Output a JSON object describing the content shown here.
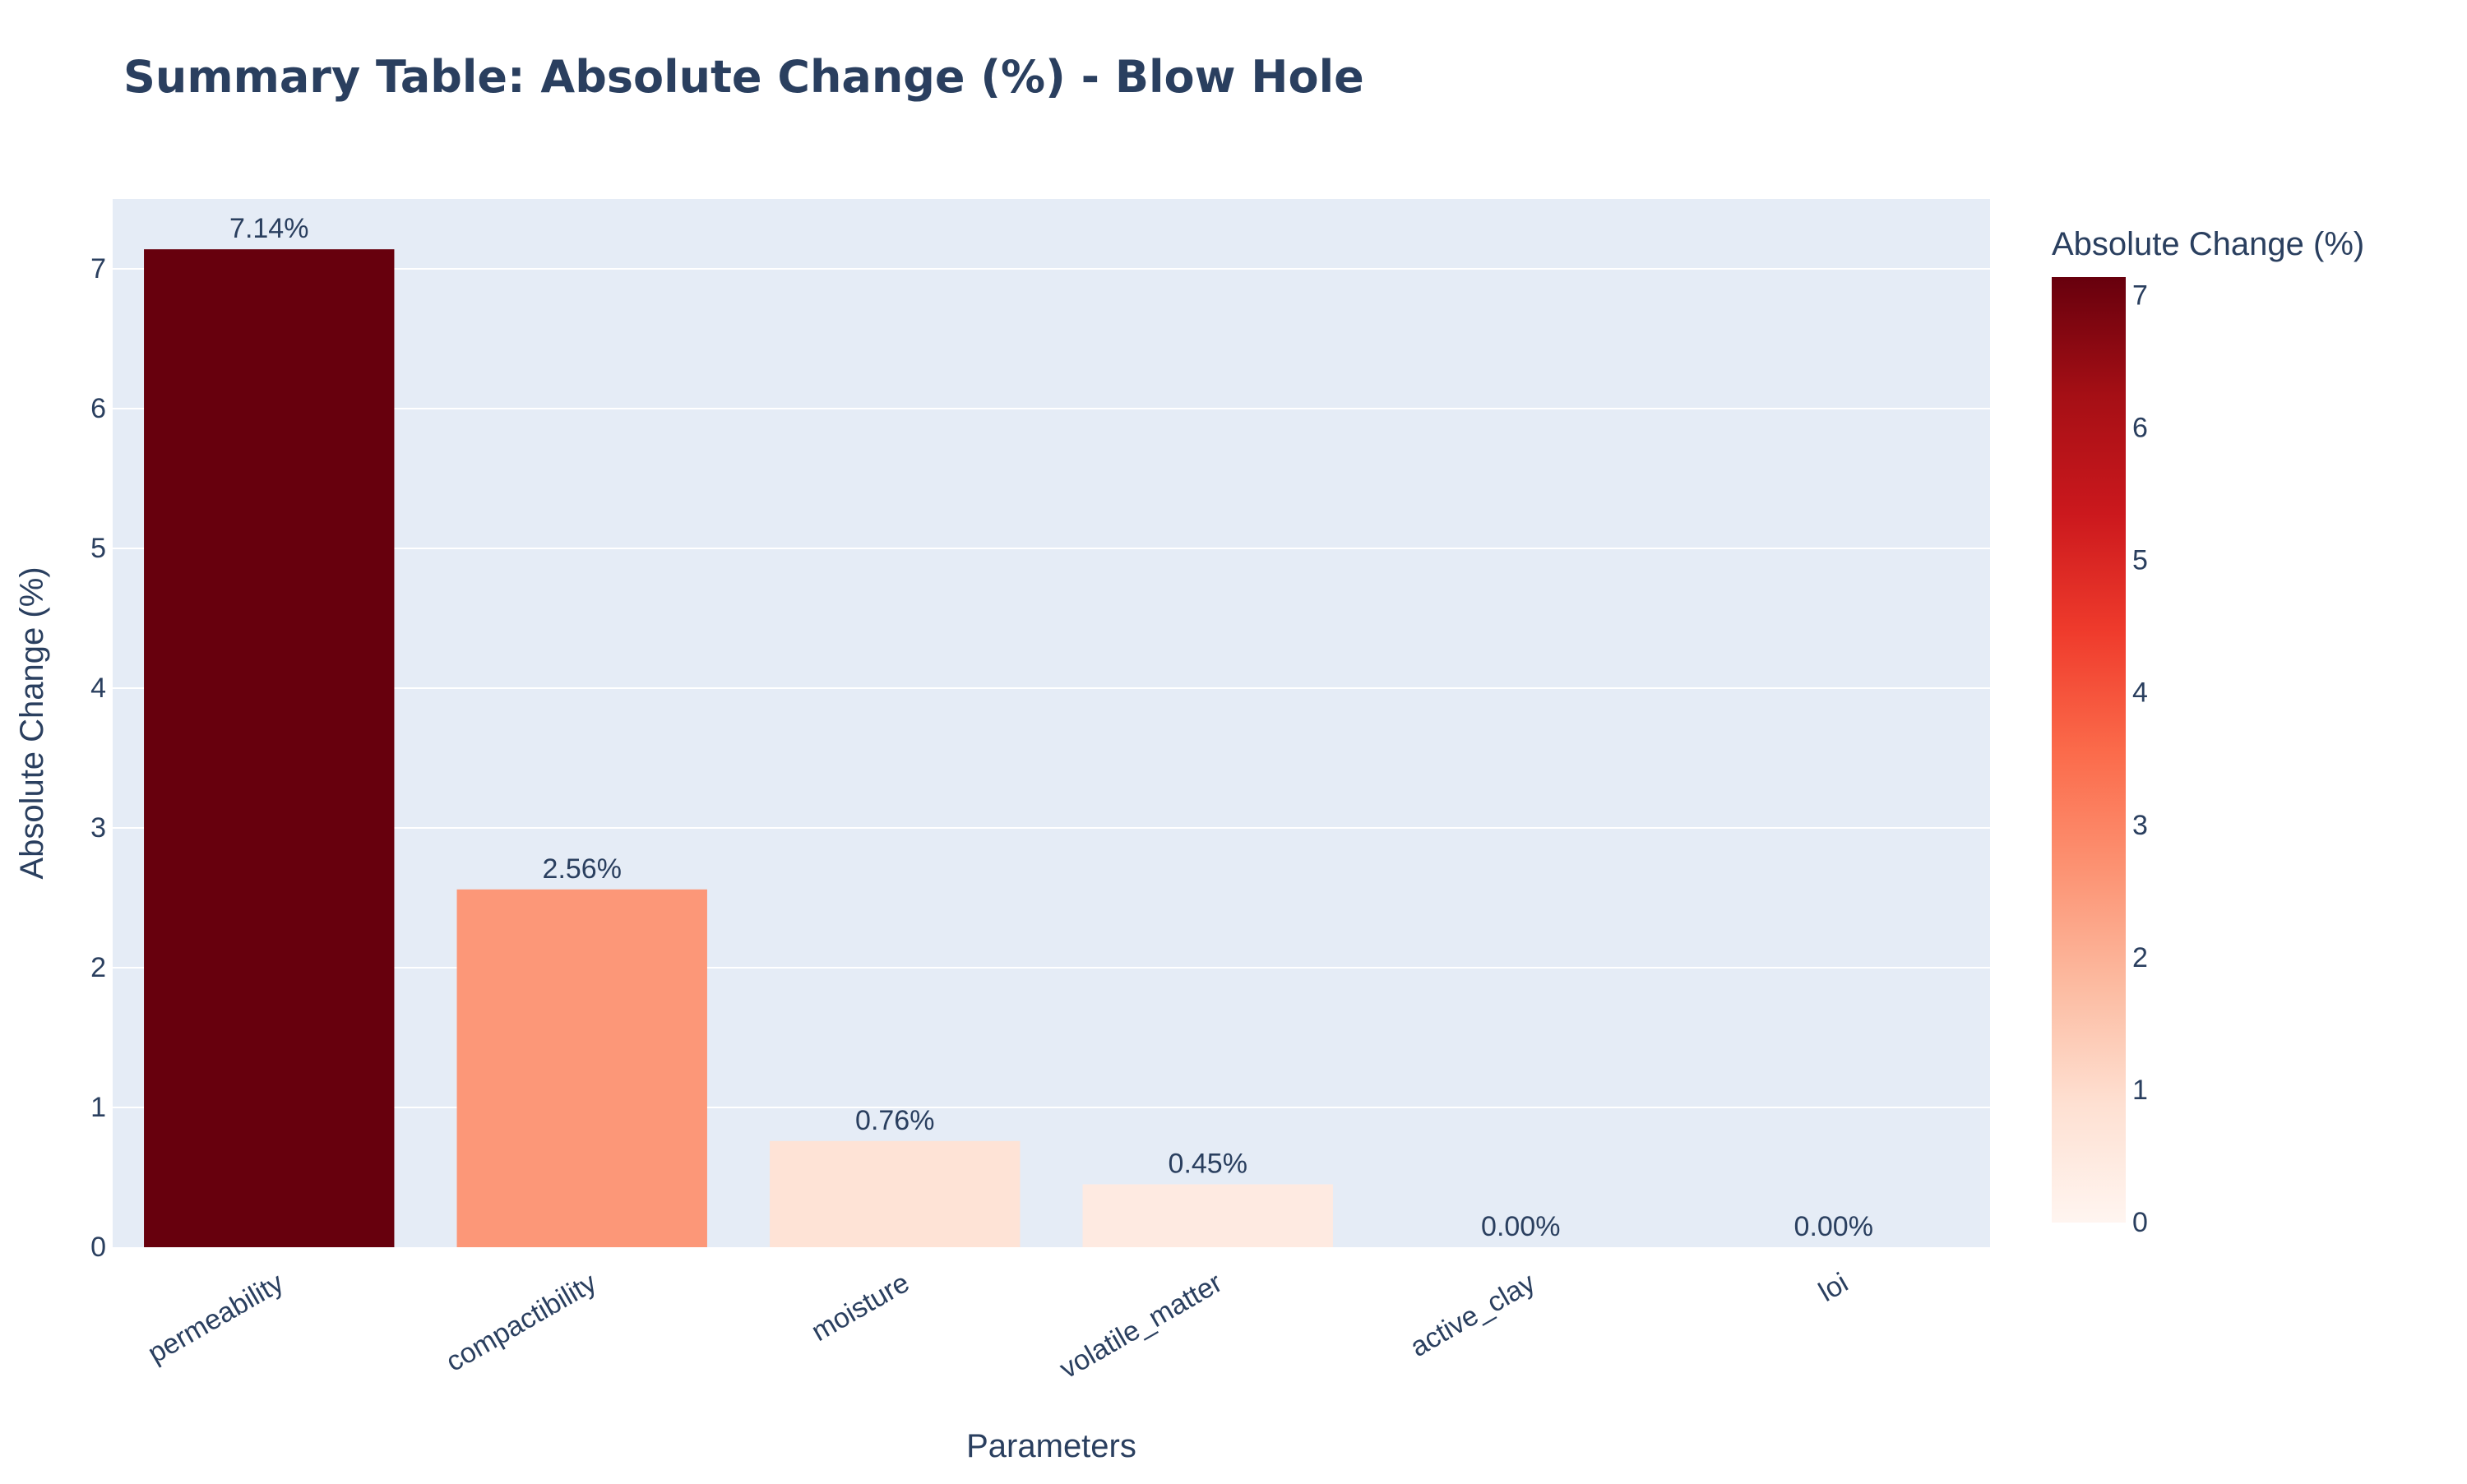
{
  "chart_data": {
    "type": "bar",
    "title": "Summary Table: Absolute Change (%) - Blow Hole",
    "xlabel": "Parameters",
    "ylabel": "Absolute Change (%)",
    "categories": [
      "permeability",
      "compactibility",
      "moisture",
      "volatile_matter",
      "active_clay",
      "loi"
    ],
    "values": [
      7.14,
      2.56,
      0.76,
      0.45,
      0.0,
      0.0
    ],
    "data_labels": [
      "7.14%",
      "2.56%",
      "0.76%",
      "0.45%",
      "0.00%",
      "0.00%"
    ],
    "ylim": [
      0,
      7.5
    ],
    "yticks": [
      0,
      1,
      2,
      3,
      4,
      5,
      6,
      7
    ],
    "grid": true,
    "plot_background": "#E5ECF6",
    "colorbar": {
      "title": "Absolute Change (%)",
      "range": [
        0,
        7.14
      ],
      "ticks": [
        0,
        1,
        2,
        3,
        4,
        5,
        6,
        7
      ],
      "colorscale": "Reds",
      "stops": [
        "#fff5f0",
        "#fee0d2",
        "#fcbba1",
        "#fc9272",
        "#fb6a4a",
        "#ef3b2c",
        "#cb181d",
        "#a50f15",
        "#67000d"
      ]
    }
  }
}
